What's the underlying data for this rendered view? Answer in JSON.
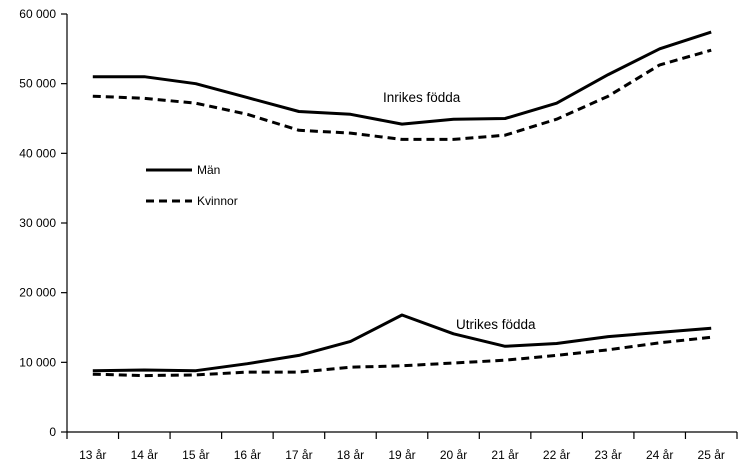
{
  "chart_data": {
    "type": "line",
    "categories": [
      "13 år",
      "14 år",
      "15 år",
      "16 år",
      "17 år",
      "18 år",
      "19 år",
      "20 år",
      "21 år",
      "22 år",
      "23 år",
      "24 år",
      "25 år"
    ],
    "ylim": [
      0,
      60000
    ],
    "yticks": [
      0,
      10000,
      20000,
      30000,
      40000,
      50000,
      60000
    ],
    "ytick_labels": [
      "0",
      "10 000",
      "20 000",
      "30 000",
      "40 000",
      "50 000",
      "60 000"
    ],
    "grid": false,
    "legend": {
      "placement": "left",
      "entries": [
        {
          "name": "Män",
          "style": "solid"
        },
        {
          "name": "Kvinnor",
          "style": "dashed"
        }
      ]
    },
    "series": [
      {
        "name": "Män",
        "group": "Inrikes födda",
        "style": "solid",
        "values": [
          51000,
          51000,
          50000,
          48000,
          46000,
          45600,
          44200,
          44900,
          45000,
          47200,
          51300,
          55000,
          57400
        ]
      },
      {
        "name": "Kvinnor",
        "group": "Inrikes födda",
        "style": "dashed",
        "values": [
          48200,
          47900,
          47200,
          45600,
          43300,
          42900,
          42000,
          42000,
          42600,
          44900,
          48200,
          52700,
          54800
        ]
      },
      {
        "name": "Män",
        "group": "Utrikes födda",
        "style": "solid",
        "values": [
          8800,
          8900,
          8800,
          9800,
          11000,
          13000,
          16800,
          14100,
          12300,
          12700,
          13700,
          14300,
          14900
        ]
      },
      {
        "name": "Kvinnor",
        "group": "Utrikes födda",
        "style": "dashed",
        "values": [
          8300,
          8100,
          8200,
          8600,
          8600,
          9300,
          9500,
          9900,
          10300,
          11000,
          11800,
          12800,
          13600
        ]
      }
    ],
    "annotations": [
      "Inrikes födda",
      "Utrikes födda"
    ]
  }
}
